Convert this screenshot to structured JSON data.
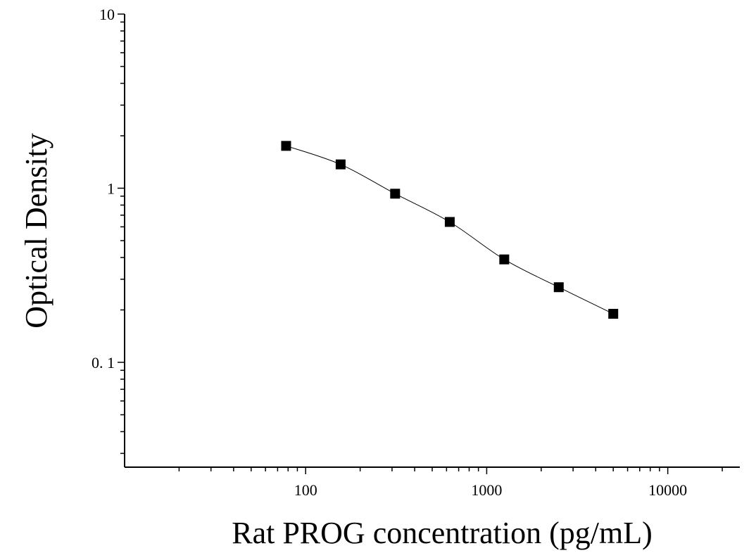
{
  "chart_data": {
    "type": "scatter",
    "title": "",
    "xlabel": "Rat PROG concentration (pg/mL)",
    "ylabel": "Optical Density",
    "x_scale": "log",
    "y_scale": "log",
    "xlim": [
      10,
      25000
    ],
    "ylim": [
      0.025,
      10
    ],
    "x_ticks": [
      {
        "value": 100,
        "label": "100"
      },
      {
        "value": 1000,
        "label": "1000"
      },
      {
        "value": 10000,
        "label": "10000"
      }
    ],
    "y_ticks": [
      {
        "value": 0.1,
        "label": "0. 1"
      },
      {
        "value": 1,
        "label": "1"
      },
      {
        "value": 10,
        "label": "10"
      }
    ],
    "grid": false,
    "legend": false,
    "marker_color": "#000000",
    "line_color": "#000000",
    "series": [
      {
        "x": [
          78,
          156,
          312,
          625,
          1250,
          2500,
          5000
        ],
        "y": [
          1.75,
          1.37,
          0.93,
          0.64,
          0.39,
          0.27,
          0.19
        ],
        "marker": "square",
        "fit_curve": true
      }
    ]
  }
}
